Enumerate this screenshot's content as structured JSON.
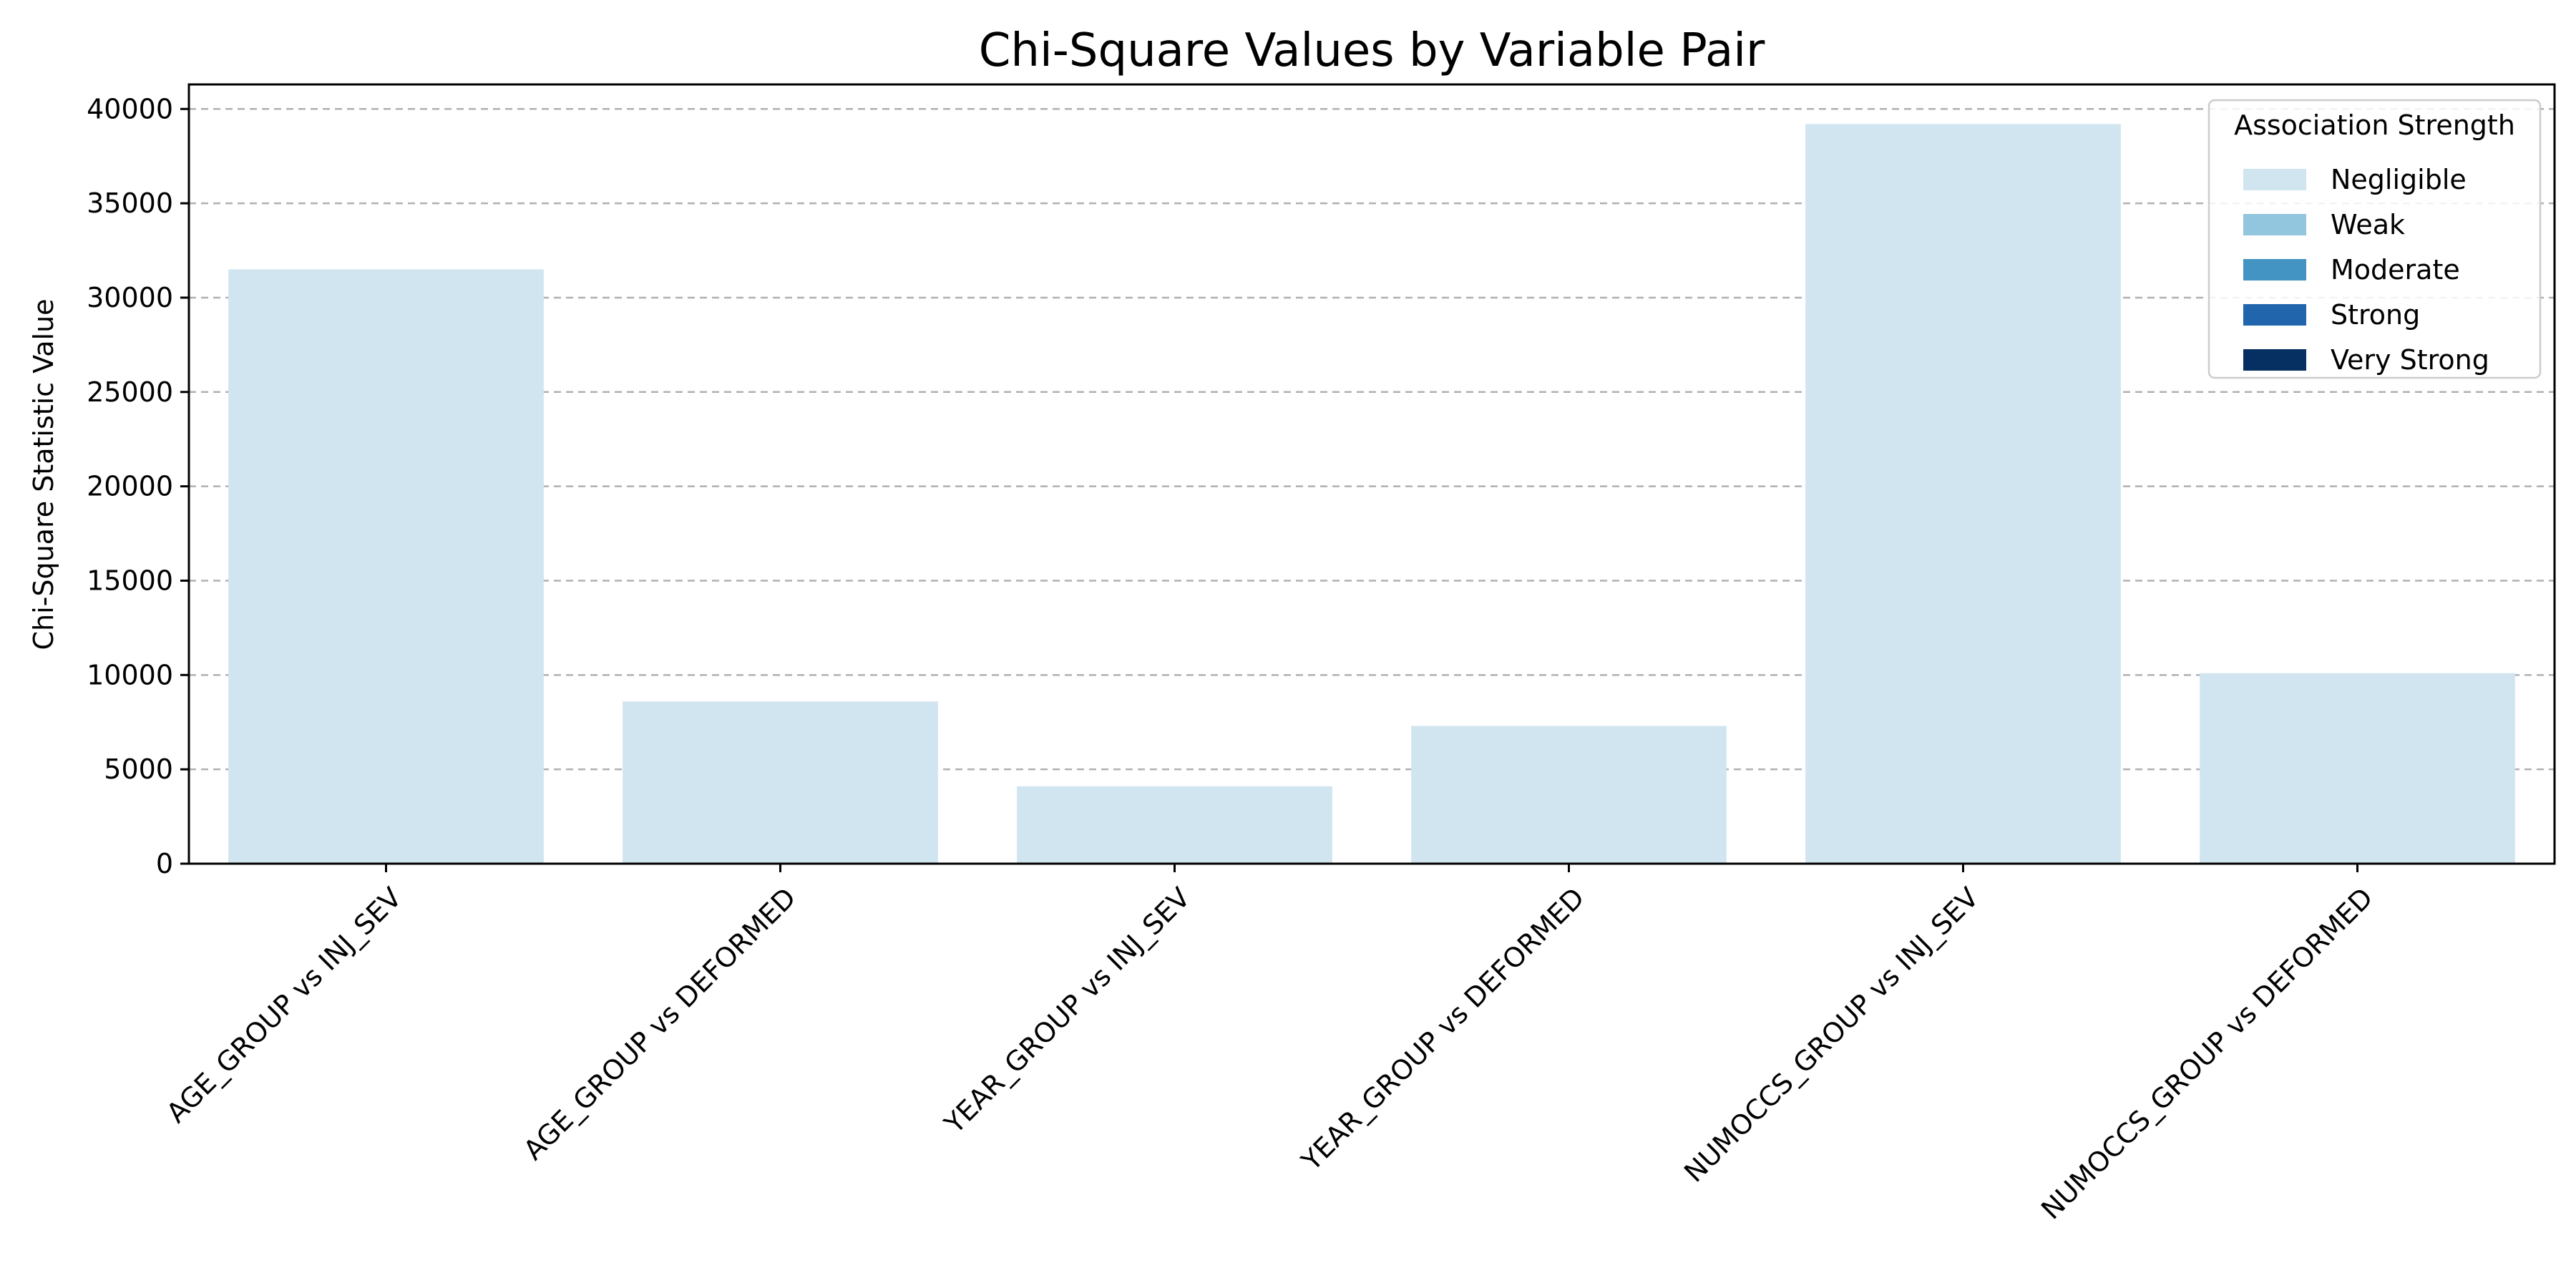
{
  "chart_data": {
    "type": "bar",
    "title": "Chi-Square Values by Variable Pair",
    "xlabel": "",
    "ylabel": "Chi-Square Statistic Value",
    "ylim": [
      0,
      41300
    ],
    "yticks": [
      0,
      5000,
      10000,
      15000,
      20000,
      25000,
      30000,
      35000,
      40000
    ],
    "ytick_labels": [
      "0",
      "5000",
      "10000",
      "15000",
      "20000",
      "25000",
      "30000",
      "35000",
      "40000"
    ],
    "grid": "y-dashed",
    "categories": [
      "AGE_GROUP vs INJ_SEV",
      "AGE_GROUP vs DEFORMED",
      "YEAR_GROUP vs INJ_SEV",
      "YEAR_GROUP vs DEFORMED",
      "NUMOCCS_GROUP vs INJ_SEV",
      "NUMOCCS_GROUP vs DEFORMED"
    ],
    "values": [
      31500,
      8600,
      4100,
      7300,
      39200,
      10100
    ],
    "bar_strength": [
      "Negligible",
      "Negligible",
      "Negligible",
      "Negligible",
      "Negligible",
      "Negligible"
    ],
    "legend": {
      "title": "Association Strength",
      "placement": "top-right",
      "entries": [
        {
          "label": "Negligible",
          "color": "#d1e5f0"
        },
        {
          "label": "Weak",
          "color": "#92c5de"
        },
        {
          "label": "Moderate",
          "color": "#4393c3"
        },
        {
          "label": "Strong",
          "color": "#2166ac"
        },
        {
          "label": "Very Strong",
          "color": "#053061"
        }
      ]
    }
  }
}
